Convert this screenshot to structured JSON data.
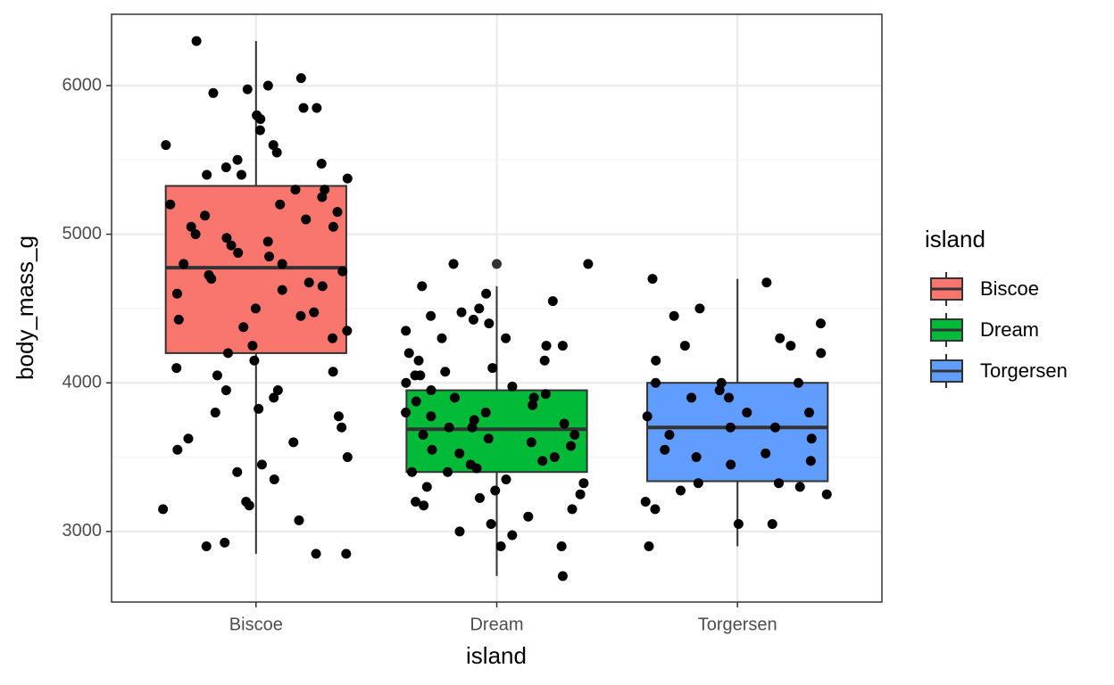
{
  "chart_data": {
    "type": "boxplot",
    "xlabel": "island",
    "ylabel": "body_mass_g",
    "categories": [
      "Biscoe",
      "Dream",
      "Torgersen"
    ],
    "ylim": [
      2525,
      6480
    ],
    "yticks": [
      3000,
      4000,
      5000,
      6000
    ],
    "grid": true,
    "legend": {
      "title": "island",
      "position": "right"
    },
    "series": [
      {
        "name": "Biscoe",
        "color": "#F8766D",
        "q1": 4200,
        "median": 4775,
        "q3": 5325,
        "whisker_low": 2850,
        "whisker_high": 6300,
        "outliers": [],
        "points": [
          6300,
          6050,
          6000,
          5975,
          5950,
          5850,
          5850,
          5800,
          5775,
          5700,
          5600,
          5600,
          5550,
          5500,
          5475,
          5450,
          5400,
          5400,
          5375,
          5300,
          5300,
          5250,
          5200,
          5200,
          5150,
          5125,
          5100,
          5050,
          5050,
          5000,
          4975,
          4950,
          4925,
          4875,
          4850,
          4800,
          4800,
          4750,
          4725,
          4700,
          4675,
          4650,
          4625,
          4600,
          4500,
          4475,
          4450,
          4425,
          4375,
          4350,
          4300,
          4250,
          4200,
          4150,
          4100,
          4075,
          4050,
          3950,
          3950,
          3900,
          3825,
          3800,
          3775,
          3700,
          3625,
          3600,
          3550,
          3500,
          3450,
          3400,
          3350,
          3200,
          3175,
          3150,
          3075,
          2925,
          2900,
          2850,
          2850
        ]
      },
      {
        "name": "Dream",
        "color": "#00BA38",
        "q1": 3400,
        "median": 3688,
        "q3": 3950,
        "whisker_low": 2700,
        "whisker_high": 4650,
        "outliers": [
          4800
        ],
        "points": [
          4800,
          4800,
          4650,
          4600,
          4550,
          4500,
          4475,
          4450,
          4425,
          4400,
          4350,
          4300,
          4300,
          4250,
          4250,
          4200,
          4150,
          4150,
          4100,
          4075,
          4050,
          4050,
          4000,
          3975,
          3950,
          3925,
          3900,
          3900,
          3875,
          3850,
          3800,
          3800,
          3775,
          3750,
          3725,
          3700,
          3700,
          3650,
          3650,
          3625,
          3600,
          3575,
          3550,
          3525,
          3500,
          3475,
          3450,
          3425,
          3400,
          3400,
          3350,
          3325,
          3300,
          3275,
          3250,
          3225,
          3200,
          3175,
          3150,
          3100,
          3050,
          3000,
          2975,
          2900,
          2900,
          2700
        ]
      },
      {
        "name": "Torgersen",
        "color": "#619CFF",
        "q1": 3338,
        "median": 3700,
        "q3": 4000,
        "whisker_low": 2900,
        "whisker_high": 4700,
        "outliers": [],
        "points": [
          4700,
          4675,
          4500,
          4450,
          4400,
          4300,
          4250,
          4250,
          4200,
          4150,
          4000,
          4000,
          4000,
          3950,
          3900,
          3900,
          3800,
          3800,
          3775,
          3700,
          3700,
          3650,
          3625,
          3550,
          3525,
          3500,
          3475,
          3450,
          3325,
          3325,
          3300,
          3275,
          3250,
          3200,
          3150,
          3050,
          3050,
          2900
        ]
      }
    ]
  }
}
